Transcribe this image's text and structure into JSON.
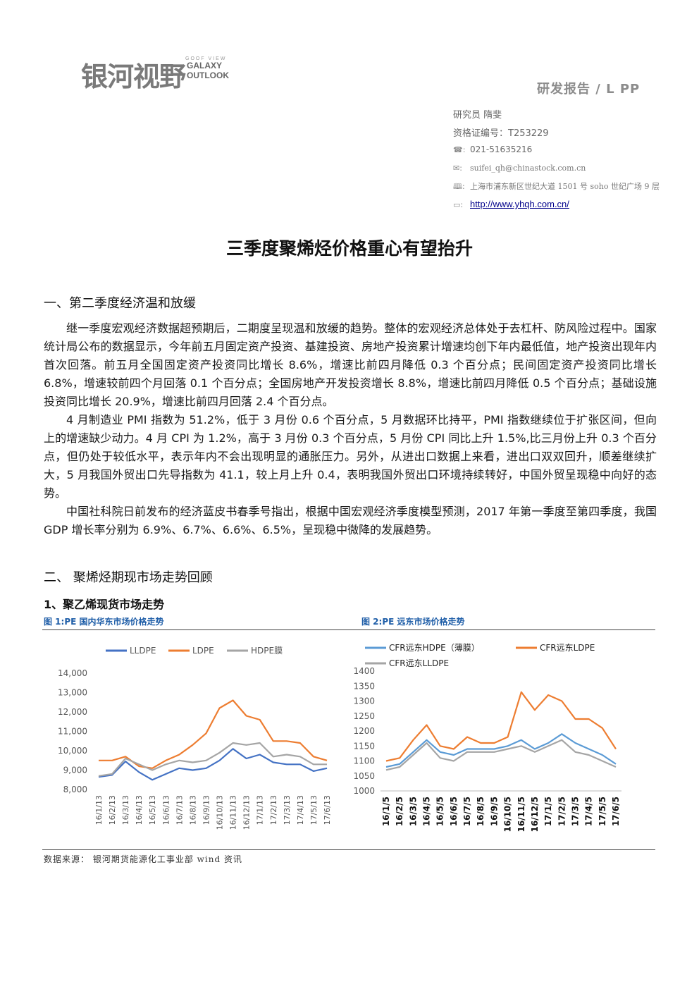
{
  "header": {
    "logo_cn": "银河视野",
    "logo_small": "GOOF VIEW",
    "logo_en_1": "GALAXY",
    "logo_en_2": "OUTLOOK",
    "report_label": "研发报告 / L PP",
    "researcher": "研究员   隋斐",
    "cert": "资格证编号：T253229",
    "phone": "021-51635216",
    "email": "suifei_qh@chinastock.com.cn",
    "address": "上海市浦东新区世纪大道 1501 号 soho 世纪广场 9 层",
    "website": "http://www.yhqh.com.cn/",
    "icons": [
      "phone-icon",
      "mail-icon",
      "book-icon",
      "computer-icon"
    ]
  },
  "title": "三季度聚烯烃价格重心有望抬升",
  "section1": {
    "heading": "一、第二季度经济温和放缓",
    "paragraphs": [
      "继一季度宏观经济数据超预期后，二期度呈现温和放缓的趋势。整体的宏观经济总体处于去杠杆、防风险过程中。国家统计局公布的数据显示，今年前五月固定资产投资、基建投资、房地产投资累计增速均创下年内最低值，地产投资出现年内首次回落。前五月全国固定资产投资同比增长 8.6%，增速比前四月降低 0.3 个百分点；民间固定资产投资同比增长 6.8%，增速较前四个月回落 0.1 个百分点；全国房地产开发投资增长 8.8%，增速比前四月降低 0.5 个百分点；基础设施投资同比增长 20.9%，增速比前四月回落 2.4 个百分点。",
      "4 月制造业 PMI 指数为 51.2%，低于 3 月份 0.6 个百分点，5 月数据环比持平，PMI 指数继续位于扩张区间，但向上的增速缺少动力。4 月 CPI 为 1.2%，高于 3 月份 0.3 个百分点，5 月份 CPI 同比上升 1.5%,比三月份上升 0.3 个百分点，但仍处于较低水平，表示年内不会出现明显的通胀压力。另外，从进出口数据上来看，进出口双双回升，顺差继续扩大，5 月我国外贸出口先导指数为 41.1，较上月上升 0.4，表明我国外贸出口环境持续转好，中国外贸呈现稳中向好的态势。",
      "中国社科院日前发布的经济蓝皮书春季号指出，根据中国宏观经济季度模型预测，2017 年第一季度至第四季度，我国 GDP 增长率分别为 6.9%、6.7%、6.6%、6.5%，呈现稳中微降的发展趋势。"
    ]
  },
  "section2": {
    "heading": "二、   聚烯烃期现市场走势回顾",
    "sub_heading": "1、聚乙烯现货市场走势"
  },
  "figures": {
    "fig1_caption": "图 1:PE 国内华东市场价格走势",
    "fig2_caption": "图 2:PE 远东市场价格走势"
  },
  "source_note": "数据来源：  银河期货能源化工事业部 wind 资讯",
  "chart_data": [
    {
      "type": "line",
      "ylim": [
        8000,
        14000
      ],
      "y_ticks": [
        "14,000",
        "13,000",
        "12,000",
        "11,000",
        "10,000",
        "9,000",
        "8,000"
      ],
      "categories": [
        "16/1/13",
        "16/2/13",
        "16/3/13",
        "16/4/13",
        "16/5/13",
        "16/6/13",
        "16/7/13",
        "16/8/13",
        "16/9/13",
        "16/10/13",
        "16/11/13",
        "16/12/13",
        "17/1/13",
        "17/2/13",
        "17/3/13",
        "17/4/13",
        "17/5/13",
        "17/6/13"
      ],
      "legend": "top",
      "series": [
        {
          "name": "LLDPE",
          "color": "#4472c4",
          "values": [
            8650,
            8750,
            9450,
            8900,
            8500,
            8800,
            9100,
            9000,
            9100,
            9500,
            10100,
            9600,
            9800,
            9400,
            9300,
            9300,
            8950,
            9100
          ]
        },
        {
          "name": "LDPE",
          "color": "#ed7d31",
          "values": [
            9500,
            9500,
            9700,
            9200,
            9100,
            9500,
            9800,
            10300,
            10900,
            12200,
            12600,
            11800,
            11600,
            10500,
            10500,
            10400,
            9700,
            9500
          ]
        },
        {
          "name": "HDPE膜",
          "color": "#a5a5a5",
          "values": [
            8700,
            8800,
            9600,
            9300,
            9000,
            9300,
            9500,
            9400,
            9500,
            9900,
            10400,
            10300,
            10400,
            9700,
            9800,
            9700,
            9300,
            9300
          ]
        }
      ]
    },
    {
      "type": "line",
      "ylim": [
        1000,
        1400
      ],
      "y_ticks": [
        "1400",
        "1350",
        "1300",
        "1250",
        "1200",
        "1150",
        "1100",
        "1050",
        "1000"
      ],
      "categories": [
        "16/1/5",
        "16/2/5",
        "16/3/5",
        "16/4/5",
        "16/5/5",
        "16/6/5",
        "16/7/5",
        "16/8/5",
        "16/9/5",
        "16/10/5",
        "16/11/5",
        "16/12/5",
        "17/1/5",
        "17/2/5",
        "17/3/5",
        "17/4/5",
        "17/5/5",
        "17/6/5"
      ],
      "legend": "top",
      "series": [
        {
          "name": "CFR远东HDPE（薄膜）",
          "color": "#5b9bd5",
          "values": [
            1080,
            1090,
            1130,
            1170,
            1130,
            1120,
            1140,
            1140,
            1140,
            1150,
            1170,
            1140,
            1160,
            1190,
            1160,
            1140,
            1120,
            1090
          ]
        },
        {
          "name": "CFR远东LDPE",
          "color": "#ed7d31",
          "values": [
            1100,
            1110,
            1170,
            1220,
            1150,
            1140,
            1180,
            1160,
            1160,
            1180,
            1330,
            1270,
            1320,
            1300,
            1240,
            1240,
            1210,
            1140
          ]
        },
        {
          "name": "CFR远东LLDPE",
          "color": "#a5a5a5",
          "values": [
            1070,
            1080,
            1120,
            1160,
            1110,
            1100,
            1130,
            1130,
            1130,
            1140,
            1150,
            1130,
            1150,
            1170,
            1130,
            1120,
            1100,
            1080
          ]
        }
      ]
    }
  ]
}
